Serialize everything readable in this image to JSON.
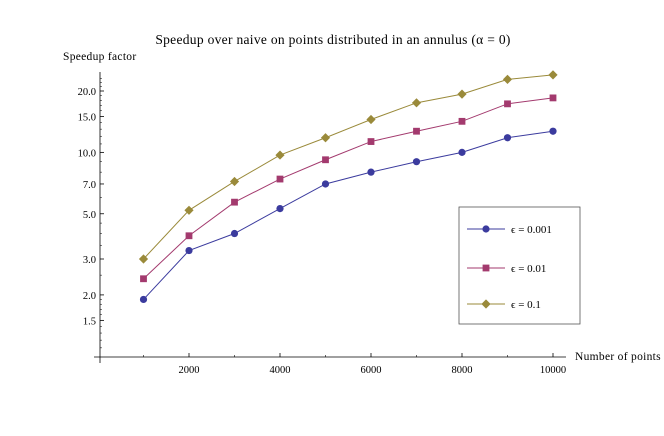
{
  "chart_data": {
    "type": "line",
    "title": "Speedup over naive on points distributed in an annulus (α = 0)",
    "xlabel": "Number of points",
    "ylabel": "Speedup factor",
    "yscale": "log",
    "xlim": [
      0,
      10000
    ],
    "ylim": [
      1.0,
      24.0
    ],
    "xticks": [
      2000,
      4000,
      6000,
      8000,
      10000
    ],
    "xtick_labels": [
      "2000",
      "4000",
      "6000",
      "8000",
      "10000"
    ],
    "yticks": [
      1.5,
      2.0,
      3.0,
      5.0,
      7.0,
      10.0,
      15.0,
      20.0
    ],
    "ytick_labels": [
      "1.5",
      "2.0",
      "3.0",
      "5.0",
      "7.0",
      "10.0",
      "15.0",
      "20.0"
    ],
    "grid": false,
    "legend_position": "right",
    "x": [
      1000,
      2000,
      3000,
      4000,
      5000,
      6000,
      7000,
      8000,
      9000,
      10000
    ],
    "series": [
      {
        "name": "ϵ = 0.001",
        "marker": "circle",
        "color": "#3b3b9e",
        "values": [
          1.9,
          3.3,
          4.0,
          5.3,
          7.0,
          8.0,
          9.0,
          10.0,
          11.8,
          12.7
        ]
      },
      {
        "name": "ϵ = 0.01",
        "marker": "square",
        "color": "#a33a6e",
        "values": [
          2.4,
          3.9,
          5.7,
          7.4,
          9.2,
          11.3,
          12.7,
          14.2,
          17.3,
          18.5
        ]
      },
      {
        "name": "ϵ = 0.1",
        "marker": "diamond",
        "color": "#9a8a3a",
        "values": [
          3.0,
          5.2,
          7.2,
          9.7,
          11.8,
          14.5,
          17.5,
          19.3,
          22.8,
          24.0
        ]
      }
    ]
  }
}
